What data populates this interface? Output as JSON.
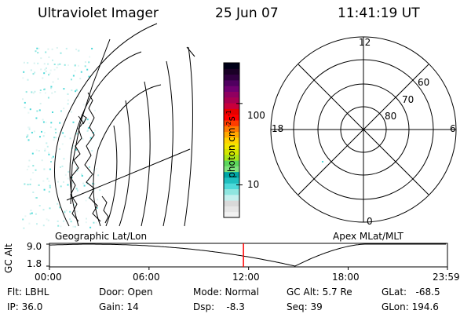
{
  "header": {
    "title": "Ultraviolet Imager",
    "date": "25 Jun 07",
    "time": "11:41:19 UT"
  },
  "colorbar": {
    "label_main": "photon cm",
    "label_exp1": "-2",
    "label_mid": "s",
    "label_exp2": "-1",
    "ticks": [
      {
        "label": "100",
        "value": 100
      },
      {
        "label": "10",
        "value": 10
      }
    ],
    "colors": [
      "#f2f2f2",
      "#e6e6e6",
      "#d9d9d9",
      "#c4f0ee",
      "#8fe6e0",
      "#4dd9d9",
      "#1fbfbf",
      "#00a6a6",
      "#7ee27e",
      "#5cd65c",
      "#a8e619",
      "#d4e600",
      "#f2e600",
      "#ffd200",
      "#ffa800",
      "#ff7a00",
      "#ff3c00",
      "#ff0000",
      "#e60000",
      "#c8003c",
      "#a80050",
      "#900060",
      "#700070",
      "#500060",
      "#300040",
      "#1a0026",
      "#000018"
    ]
  },
  "left_panel": {
    "label": "Geographic Lat/Lon"
  },
  "right_panel": {
    "label": "Apex MLat/MLT",
    "mlt_labels": {
      "top": "12",
      "left": "18",
      "right": "6",
      "bottom": "0"
    },
    "lat_labels": [
      "60",
      "70",
      "80"
    ]
  },
  "altitude_strip": {
    "axis_label": "GC Alt",
    "y_ticks": [
      "9.0",
      "1.8"
    ],
    "x_ticks": [
      "00:00",
      "06:00",
      "12:00",
      "18:00",
      "23:59"
    ],
    "marker_time_hours": 11.69,
    "marker_color": "#ff0000"
  },
  "info": {
    "flt": "Flt: LBHL",
    "ip": "IP: 36.0",
    "door": "Door: Open",
    "gain": "Gain: 14",
    "mode": "Mode: Normal",
    "dsp": "Dsp:    -8.3",
    "gc_alt": "GC Alt: 5.7 Re",
    "seq": "Seq: 39",
    "glat": "GLat:   -68.5",
    "glon": "GLon: 194.6"
  }
}
